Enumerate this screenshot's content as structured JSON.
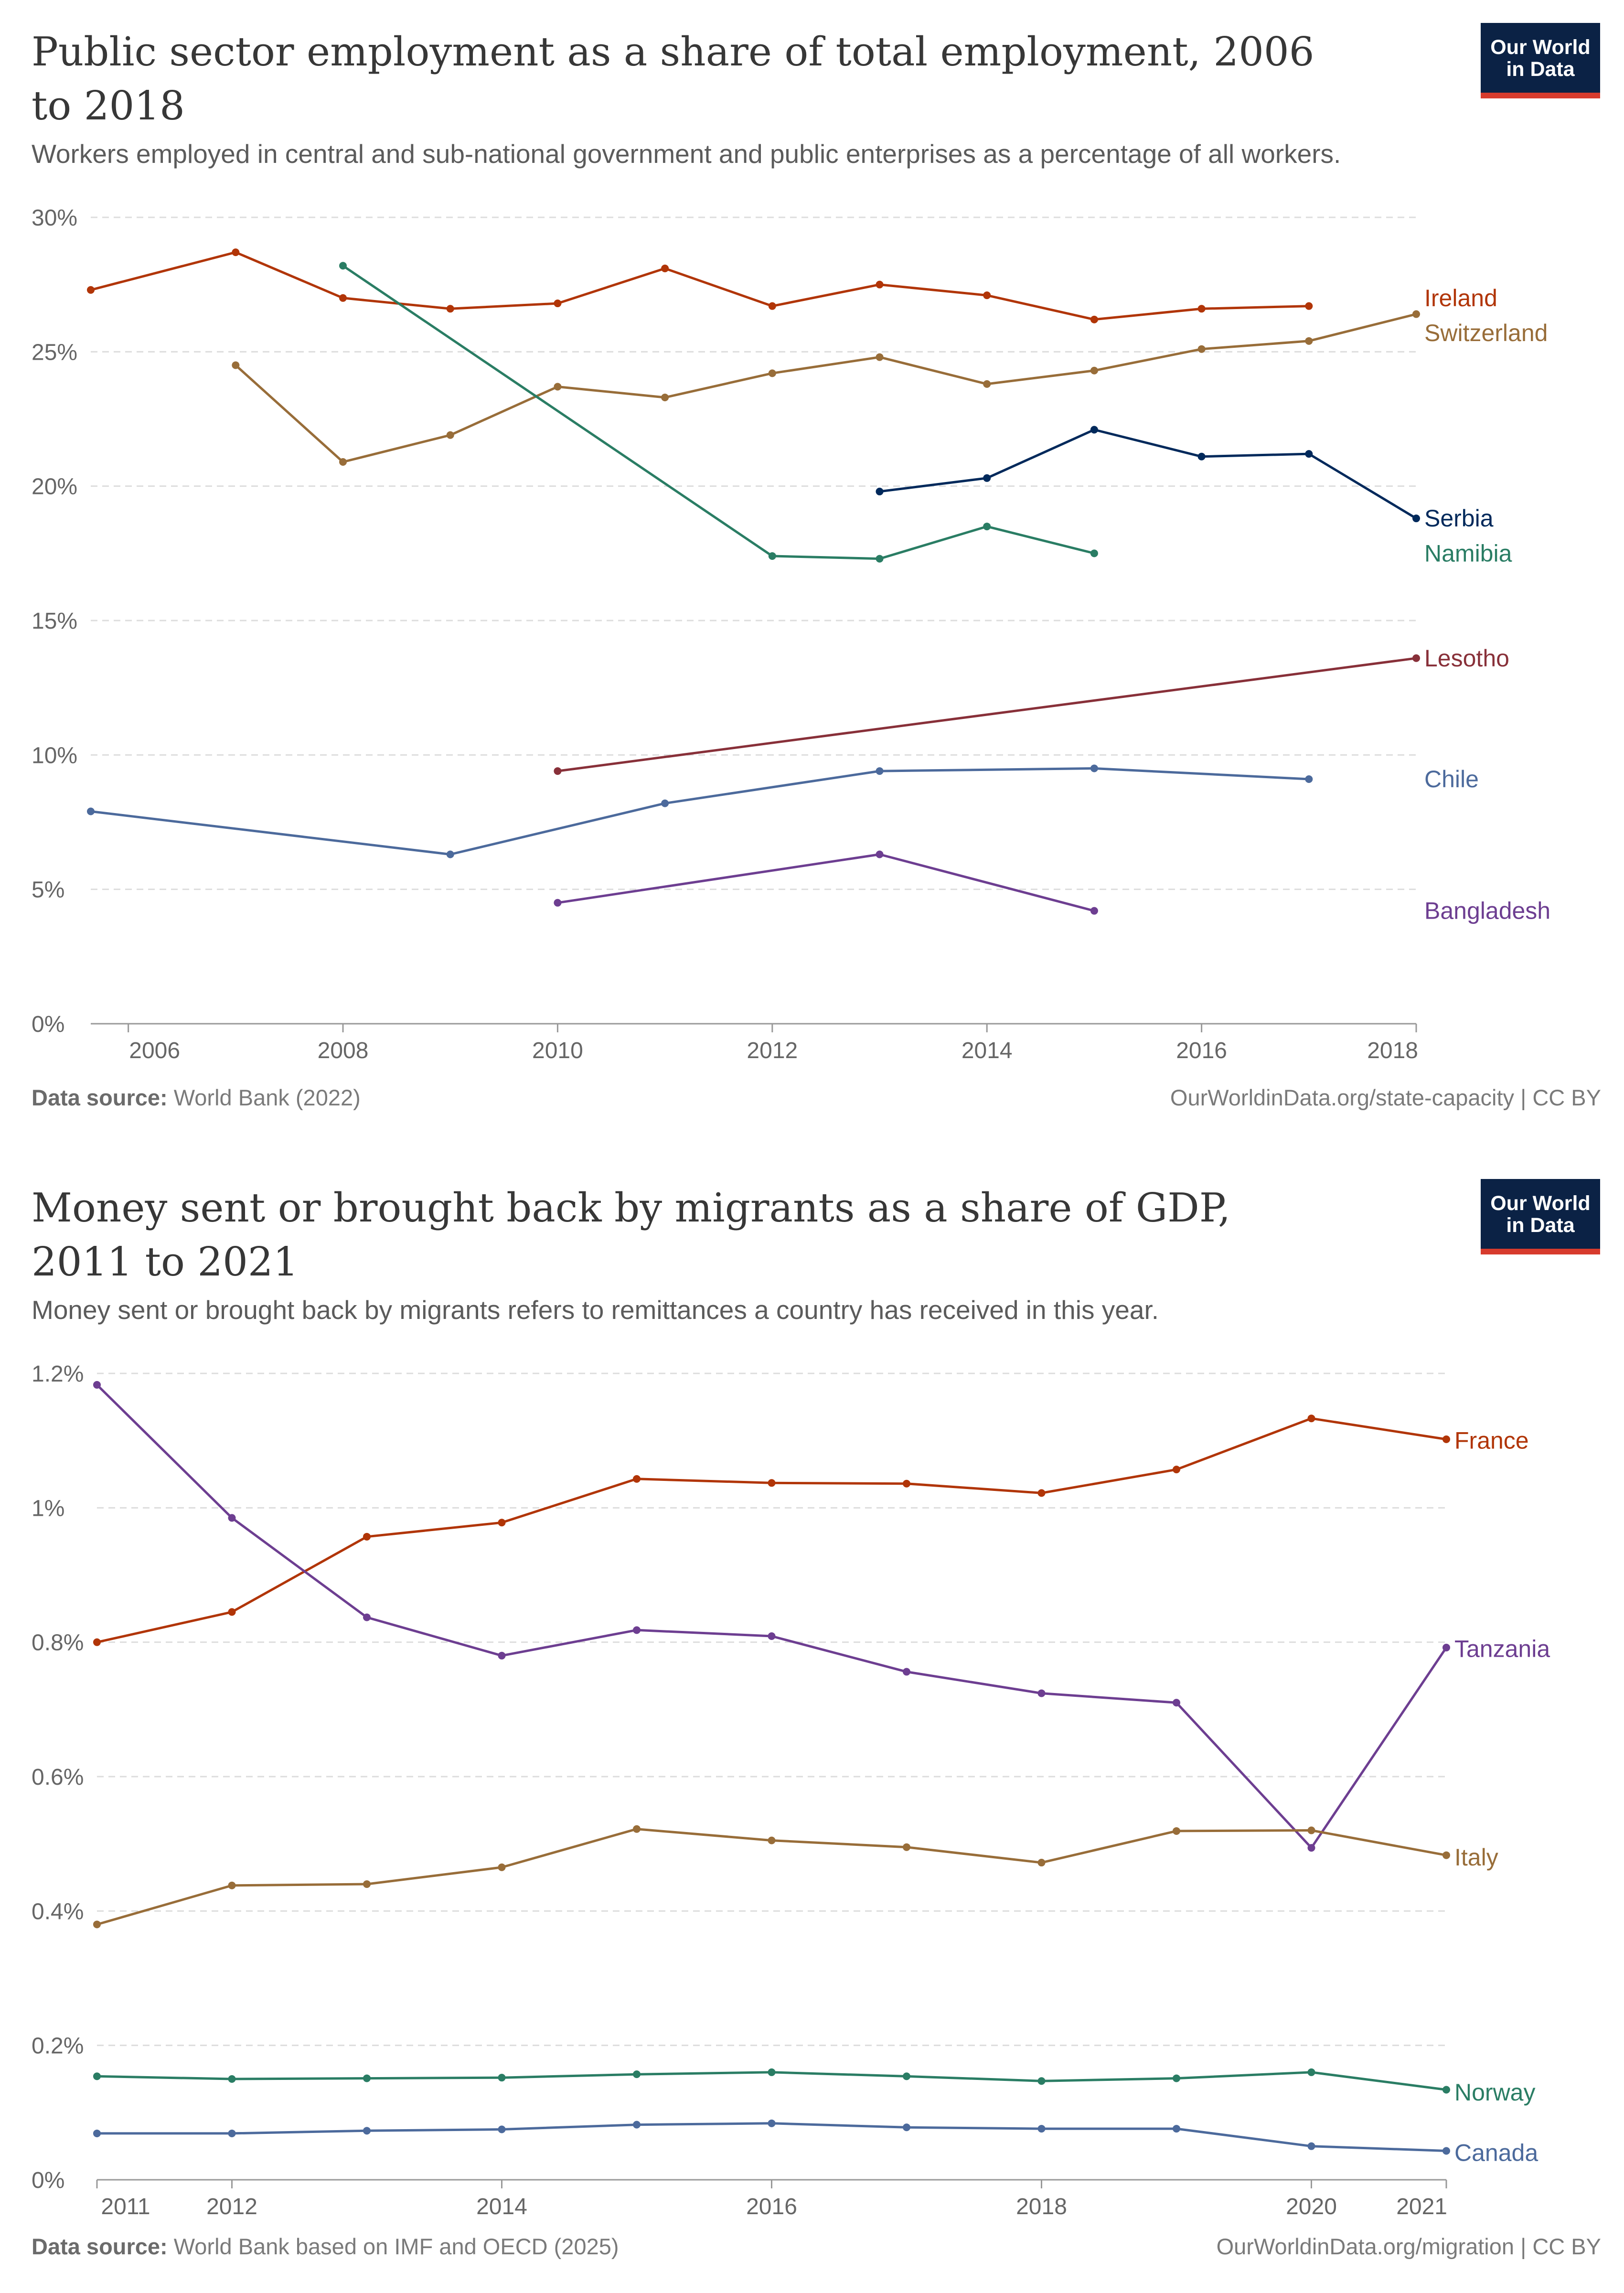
{
  "chart_data": [
    {
      "type": "line",
      "title": "Public sector employment as a share of total employment, 2006 to 2018",
      "subtitle": "Workers employed in central and sub-national government and public enterprises as a percentage of all workers.",
      "xlabel": "",
      "ylabel": "",
      "xlim": [
        2005.65,
        2018
      ],
      "ylim": [
        0,
        30
      ],
      "x_ticks": [
        2006,
        2008,
        2010,
        2012,
        2014,
        2016,
        2018
      ],
      "y_ticks": [
        0,
        5,
        10,
        15,
        20,
        25,
        30
      ],
      "y_tick_labels": [
        "0%",
        "5%",
        "10%",
        "15%",
        "20%",
        "25%",
        "30%"
      ],
      "grid": "horizontal dashed",
      "legend": "labels at right end of lines",
      "series": [
        {
          "name": "Ireland",
          "color": "#b13507",
          "label_y": 27.0,
          "x": [
            2005.65,
            2007,
            2008,
            2009,
            2010,
            2011,
            2012,
            2013,
            2014,
            2015,
            2016,
            2017
          ],
          "values": [
            27.3,
            28.7,
            27.0,
            26.6,
            26.8,
            28.1,
            26.7,
            27.5,
            27.1,
            26.2,
            26.6,
            26.7
          ]
        },
        {
          "name": "Switzerland",
          "color": "#986d39",
          "label_y": 25.7,
          "x": [
            2007,
            2008,
            2009,
            2010,
            2011,
            2012,
            2013,
            2014,
            2015,
            2016,
            2017,
            2018
          ],
          "values": [
            24.5,
            20.9,
            21.9,
            23.7,
            23.3,
            24.2,
            24.8,
            23.8,
            24.3,
            25.1,
            25.4,
            26.4
          ]
        },
        {
          "name": "Namibia",
          "color": "#2a7d64",
          "label_y": 17.5,
          "x": [
            2008,
            2012,
            2013,
            2014,
            2015
          ],
          "values": [
            28.2,
            17.4,
            17.3,
            18.5,
            17.5
          ]
        },
        {
          "name": "Serbia",
          "color": "#00295b",
          "label_y": 18.8,
          "x": [
            2013,
            2014,
            2015,
            2016,
            2017,
            2018
          ],
          "values": [
            19.8,
            20.3,
            22.1,
            21.1,
            21.2,
            18.8
          ]
        },
        {
          "name": "Lesotho",
          "color": "#883039",
          "label_y": 13.6,
          "x": [
            2010,
            2018
          ],
          "values": [
            9.4,
            13.6
          ]
        },
        {
          "name": "Chile",
          "color": "#4c6a9c",
          "label_y": 9.1,
          "x": [
            2005.65,
            2009,
            2011,
            2013,
            2015,
            2017
          ],
          "values": [
            7.9,
            6.3,
            8.2,
            9.4,
            9.5,
            9.1
          ]
        },
        {
          "name": "Bangladesh",
          "color": "#6d3e91",
          "label_y": 4.2,
          "x": [
            2010,
            2013,
            2015
          ],
          "values": [
            4.5,
            6.3,
            4.2
          ]
        }
      ],
      "source_label": "Data source:",
      "source": "World Bank (2022)",
      "license": "OurWorldinData.org/state-capacity | CC BY"
    },
    {
      "type": "line",
      "title": "Money sent or brought back by migrants as a share of GDP, 2011 to 2021",
      "subtitle": "Money sent or brought back by migrants refers to remittances a country has received in this year.",
      "xlabel": "",
      "ylabel": "",
      "xlim": [
        2011,
        2021
      ],
      "ylim": [
        0,
        1.2
      ],
      "x_ticks": [
        2011,
        2012,
        2014,
        2016,
        2018,
        2020,
        2021
      ],
      "y_ticks": [
        0,
        0.2,
        0.4,
        0.6,
        0.8,
        1.0,
        1.2
      ],
      "y_tick_labels": [
        "0%",
        "0.2%",
        "0.4%",
        "0.6%",
        "0.8%",
        "1%",
        "1.2%"
      ],
      "grid": "horizontal dashed",
      "legend": "labels at right end of lines",
      "series": [
        {
          "name": "France",
          "color": "#b13507",
          "label_y": 1.1,
          "x": [
            2011,
            2012,
            2013,
            2014,
            2015,
            2016,
            2017,
            2018,
            2019,
            2020,
            2021
          ],
          "values": [
            0.8,
            0.845,
            0.957,
            0.978,
            1.043,
            1.037,
            1.036,
            1.022,
            1.057,
            1.133,
            1.102
          ]
        },
        {
          "name": "Tanzania",
          "color": "#6d3e91",
          "label_y": 0.79,
          "x": [
            2011,
            2012,
            2013,
            2014,
            2015,
            2016,
            2017,
            2018,
            2019,
            2020,
            2021
          ],
          "values": [
            1.183,
            0.985,
            0.837,
            0.78,
            0.818,
            0.809,
            0.756,
            0.724,
            0.71,
            0.494,
            0.792
          ]
        },
        {
          "name": "Italy",
          "color": "#986d39",
          "label_y": 0.48,
          "x": [
            2011,
            2012,
            2013,
            2014,
            2015,
            2016,
            2017,
            2018,
            2019,
            2020,
            2021
          ],
          "values": [
            0.38,
            0.438,
            0.44,
            0.465,
            0.522,
            0.505,
            0.495,
            0.472,
            0.519,
            0.52,
            0.483
          ]
        },
        {
          "name": "Norway",
          "color": "#2a7d64",
          "label_y": 0.13,
          "x": [
            2011,
            2012,
            2013,
            2014,
            2015,
            2016,
            2017,
            2018,
            2019,
            2020,
            2021
          ],
          "values": [
            0.154,
            0.15,
            0.151,
            0.152,
            0.157,
            0.16,
            0.154,
            0.147,
            0.151,
            0.16,
            0.134
          ]
        },
        {
          "name": "Canada",
          "color": "#4c6a9c",
          "label_y": 0.04,
          "x": [
            2011,
            2012,
            2013,
            2014,
            2015,
            2016,
            2017,
            2018,
            2019,
            2020,
            2021
          ],
          "values": [
            0.069,
            0.069,
            0.073,
            0.075,
            0.082,
            0.084,
            0.078,
            0.076,
            0.076,
            0.05,
            0.043
          ]
        }
      ],
      "source_label": "Data source:",
      "source": "World Bank based on IMF and OECD (2025)",
      "license": "OurWorldinData.org/migration | CC BY"
    }
  ],
  "logo": {
    "line1": "Our World",
    "line2": "in Data"
  },
  "colors": {
    "grid": "#dddddd",
    "axis": "#999999",
    "tick_text": "#666666",
    "logo_bg": "#0b2245",
    "logo_accent": "#d73b2d"
  }
}
